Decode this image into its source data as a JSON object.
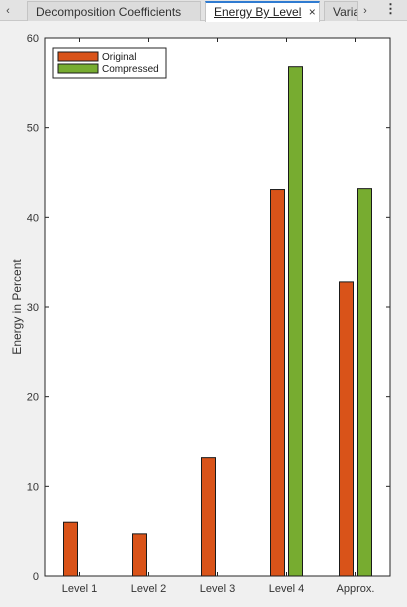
{
  "tabs": [
    {
      "label": "Decomposition Coefficients",
      "active": false
    },
    {
      "label": "Energy By Level",
      "active": true
    },
    {
      "label": "Varia",
      "active": false
    }
  ],
  "icons": {
    "scroll_left": "chevron-left-icon",
    "scroll_right": "chevron-right-icon",
    "more": "more-vertical-icon",
    "close": "close-icon"
  },
  "glyphs": {
    "left": "‹",
    "right": "›",
    "more": "⋮",
    "close": "×"
  },
  "chart_data": {
    "type": "bar",
    "categories": [
      "Level 1",
      "Level 2",
      "Level 3",
      "Level 4",
      "Approx."
    ],
    "series": [
      {
        "name": "Original",
        "color": "#d95319",
        "values": [
          6.0,
          4.7,
          13.2,
          43.1,
          32.8
        ]
      },
      {
        "name": "Compressed",
        "color": "#77ac30",
        "values": [
          0,
          0,
          0,
          56.8,
          43.2
        ]
      }
    ],
    "ylabel": "Energy in Percent",
    "xlabel": "",
    "ylim": [
      0,
      60
    ],
    "yticks": [
      0,
      10,
      20,
      30,
      40,
      50,
      60
    ],
    "legend_position": "top-left",
    "grid": false
  }
}
